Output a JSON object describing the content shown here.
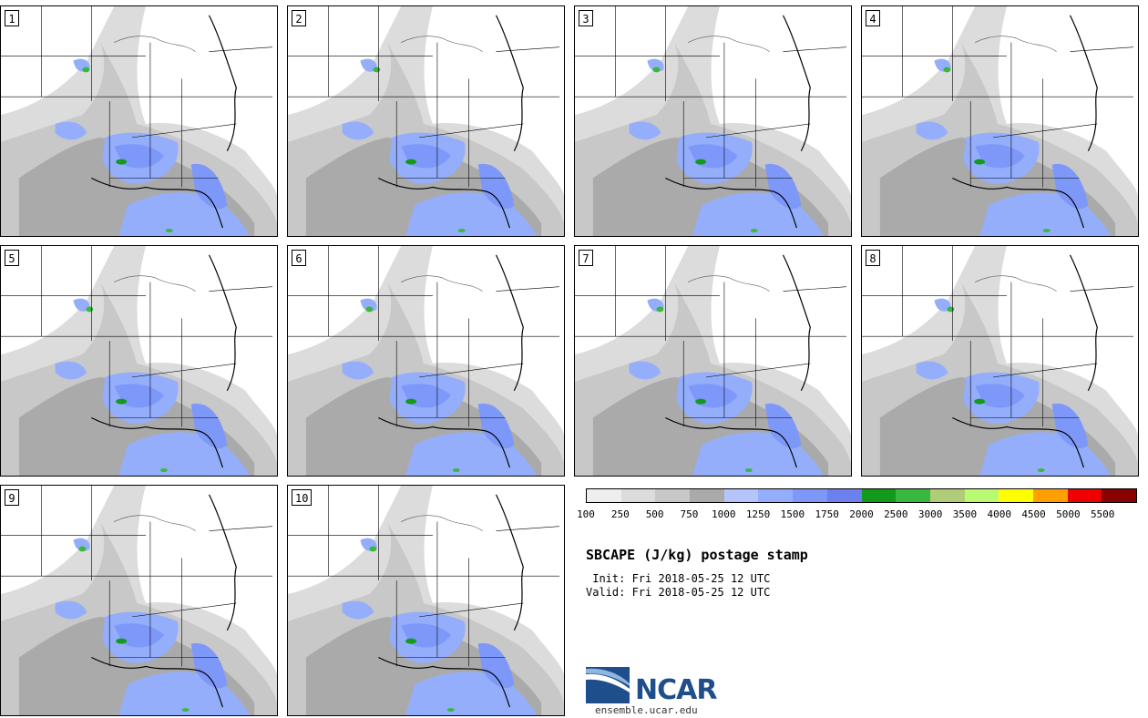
{
  "panels": [
    {
      "label": "1"
    },
    {
      "label": "2"
    },
    {
      "label": "3"
    },
    {
      "label": "4"
    },
    {
      "label": "5"
    },
    {
      "label": "6"
    },
    {
      "label": "7"
    },
    {
      "label": "8"
    },
    {
      "label": "9"
    },
    {
      "label": "10"
    }
  ],
  "colorbar": {
    "colors": [
      "#eeeeee",
      "#dcdcdc",
      "#c8c8c8",
      "#aaaaaa",
      "#b4c4fc",
      "#94aefc",
      "#7e98fa",
      "#6c80f0",
      "#129a1a",
      "#38b83c",
      "#b0cc78",
      "#bafa72",
      "#ffff00",
      "#ffa000",
      "#ee0000",
      "#880000"
    ],
    "ticks": [
      "100",
      "250",
      "500",
      "750",
      "1000",
      "1250",
      "1500",
      "1750",
      "2000",
      "2500",
      "3000",
      "3500",
      "4000",
      "4500",
      "5000",
      "5500"
    ]
  },
  "title": "SBCAPE (J/kg) postage stamp",
  "init_line": " Init: Fri 2018-05-25 12 UTC",
  "valid_line": "Valid: Fri 2018-05-25 12 UTC",
  "logo": {
    "text": "NCAR",
    "url": "ensemble.ucar.edu"
  }
}
